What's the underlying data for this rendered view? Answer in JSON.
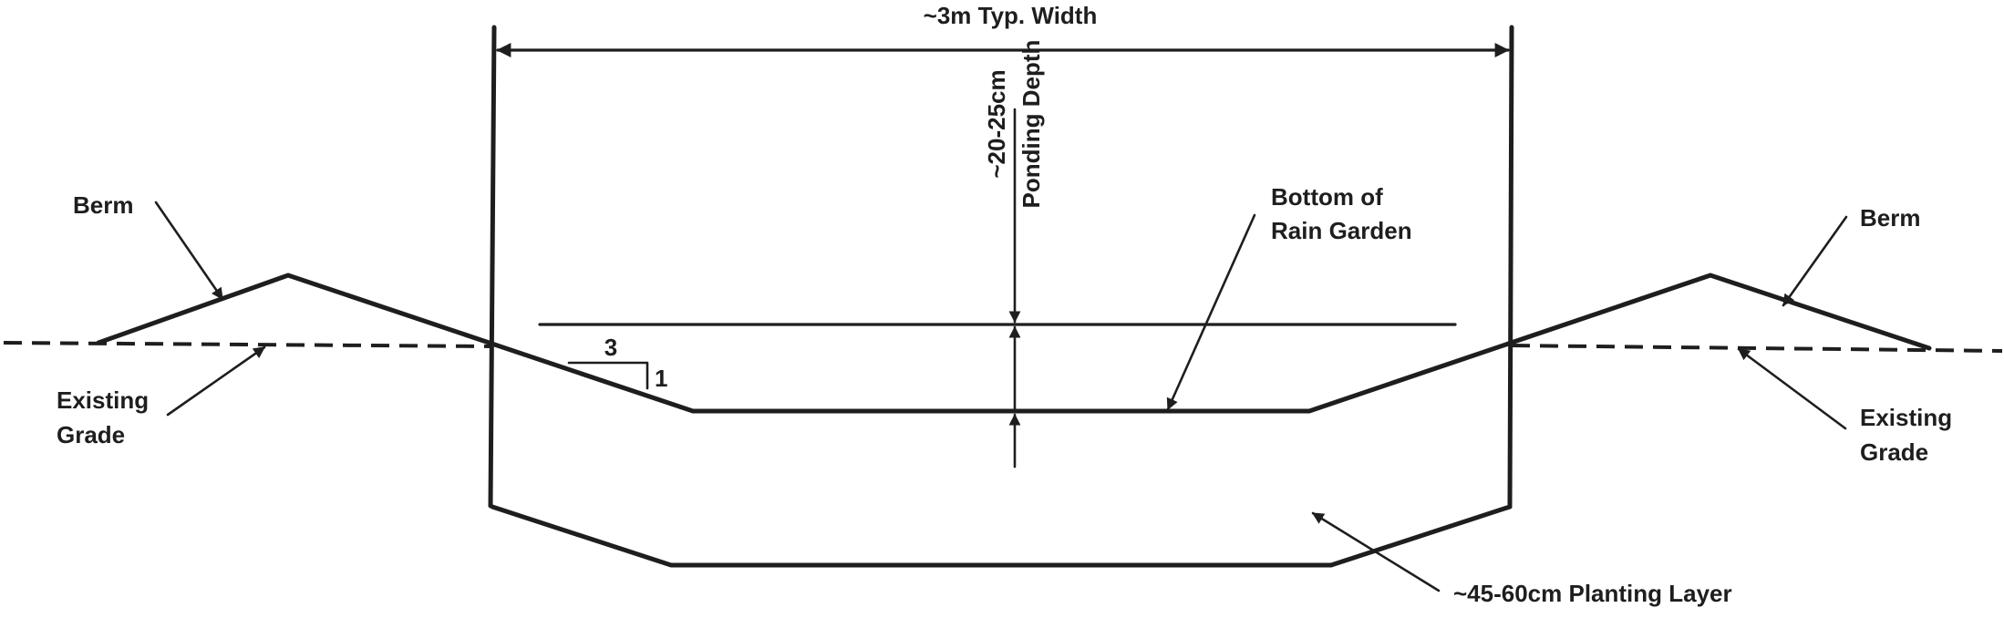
{
  "labels": {
    "typ_width": "~3m Typ. Width",
    "ponding_depth_1": "~20-25cm",
    "ponding_depth_2": "Ponding Depth",
    "bottom_1": "Bottom of",
    "bottom_2": "Rain Garden",
    "berm_left": "Berm",
    "berm_right": "Berm",
    "grade_left_1": "Existing",
    "grade_left_2": "Grade",
    "grade_right_1": "Existing",
    "grade_right_2": "Grade",
    "slope_run": "3",
    "slope_rise": "1",
    "planting_layer": "~45-60cm Planting Layer"
  },
  "colors": {
    "ink": "#1e1e1e",
    "background": "#ffffff"
  }
}
